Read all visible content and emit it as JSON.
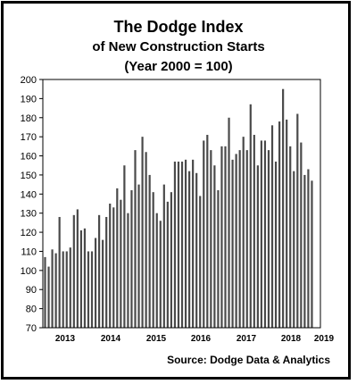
{
  "chart_data": {
    "type": "bar",
    "title": "The Dodge Index",
    "subtitle": [
      "of New Construction Starts",
      "(Year 2000 = 100)"
    ],
    "source": "Source:  Dodge Data & Analytics",
    "ylim": [
      70,
      200
    ],
    "yticks": [
      70,
      80,
      90,
      100,
      110,
      120,
      130,
      140,
      150,
      160,
      170,
      180,
      190,
      200
    ],
    "xlabels": [
      "2013",
      "2014",
      "2015",
      "2016",
      "2017",
      "2018",
      "2019"
    ],
    "grid": false,
    "bar_color": "#4a4a4a",
    "values": [
      107,
      102,
      111,
      109,
      128,
      110,
      110,
      112,
      129,
      132,
      121,
      122,
      110,
      110,
      117,
      129,
      116,
      128,
      135,
      133,
      143,
      137,
      155,
      130,
      142,
      163,
      145,
      170,
      162,
      150,
      141,
      130,
      126,
      145,
      136,
      141,
      157,
      157,
      157,
      158,
      152,
      158,
      151,
      139,
      168,
      171,
      163,
      155,
      142,
      165,
      165,
      180,
      158,
      161,
      163,
      170,
      163,
      187,
      171,
      155,
      168,
      168,
      163,
      176,
      157,
      178,
      195,
      179,
      165,
      152,
      182,
      167,
      150,
      153,
      147
    ]
  }
}
